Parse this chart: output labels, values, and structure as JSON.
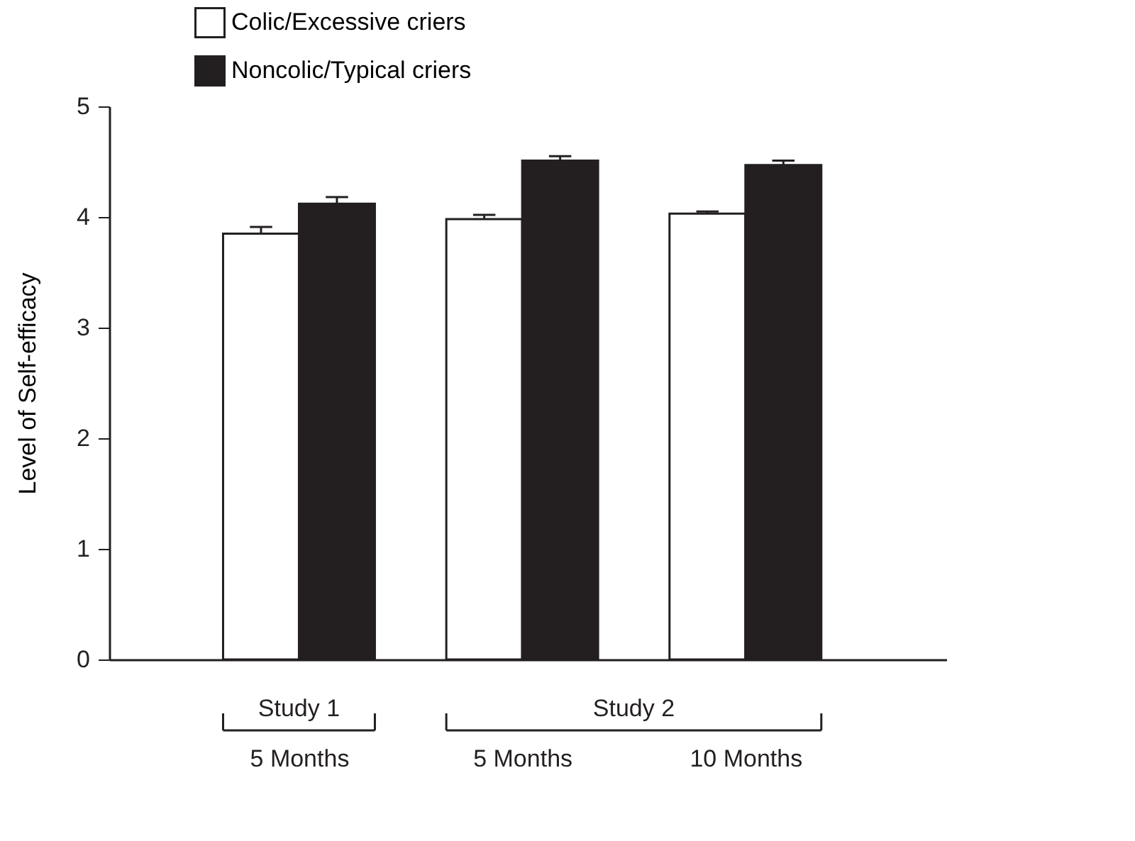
{
  "chart_data": {
    "type": "bar",
    "ylabel": "Level of Self-efficacy",
    "categories": [
      "5 Months",
      "5 Months",
      "10 Months"
    ],
    "series": [
      {
        "name": "Colic/Excessive criers",
        "color": "#ffffff",
        "values": [
          3.85,
          3.98,
          4.03
        ],
        "errors": [
          [
            3.85,
            3.91
          ],
          [
            3.98,
            4.02
          ],
          [
            4.03,
            4.05
          ]
        ]
      },
      {
        "name": "Noncolic/Typical criers",
        "color": "#231f20",
        "values": [
          4.12,
          4.51,
          4.47
        ],
        "errors": [
          [
            4.12,
            4.18
          ],
          [
            4.51,
            4.55
          ],
          [
            4.47,
            4.51
          ]
        ]
      }
    ],
    "ylim": [
      0,
      5
    ],
    "yticks": [
      0,
      1,
      2,
      3,
      4,
      5
    ],
    "grid": false,
    "legend": "top left",
    "annotations": [
      "Study 1",
      "Study 2"
    ]
  }
}
